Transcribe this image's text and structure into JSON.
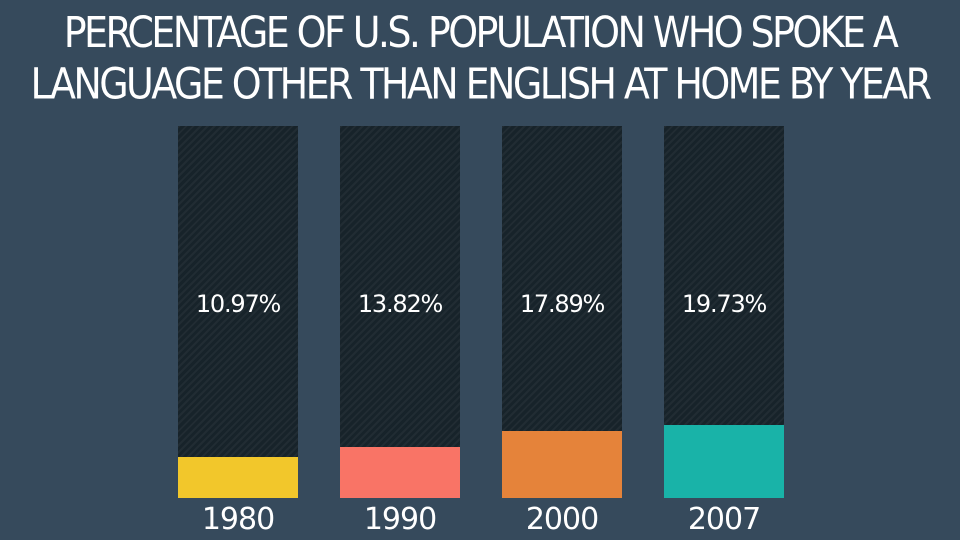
{
  "title": {
    "line1": "PERCENTAGE OF U.S. POPULATION WHO SPOKE A",
    "line2": "LANGUAGE OTHER THAN ENGLISH AT HOME BY YEAR"
  },
  "chart_data": {
    "type": "bar",
    "title": "PERCENTAGE OF U.S. POPULATION WHO SPOKE A LANGUAGE OTHER THAN ENGLISH AT HOME BY YEAR",
    "categories": [
      "1980",
      "1990",
      "2000",
      "2007"
    ],
    "values": [
      10.97,
      13.82,
      17.89,
      19.73
    ],
    "value_labels": [
      "10.97%",
      "13.82%",
      "17.89%",
      "19.73%"
    ],
    "colors": [
      "#f2c72b",
      "#f97466",
      "#e5833a",
      "#19b3a8"
    ],
    "track_color": "#17232a",
    "background": "#364a5c",
    "ylim": [
      0,
      100
    ],
    "grid": false,
    "legend": "none"
  }
}
